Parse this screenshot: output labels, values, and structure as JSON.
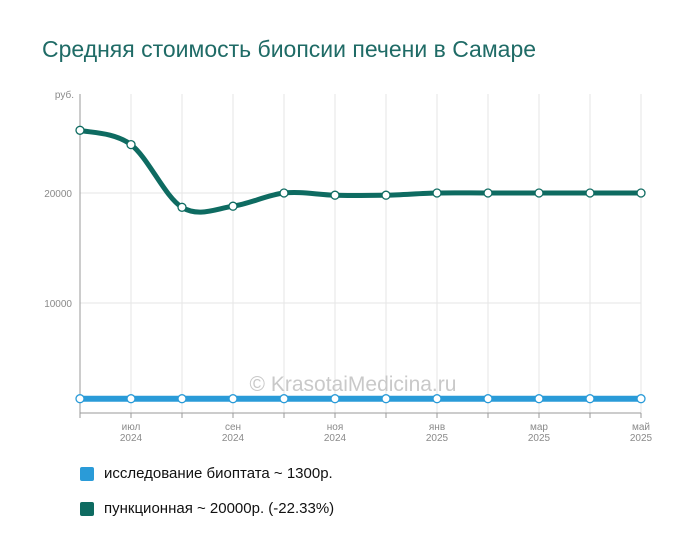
{
  "title": "Средняя стоимость биопсии печени в Самаре",
  "watermark": "© KrasotaiMedicina.ru",
  "legend": [
    {
      "label": "исследование биоптата ~ 1300р.",
      "color": "#2a9bd8"
    },
    {
      "label": "пункционная ~ 20000р. (-22.33%)",
      "color": "#0e6b61"
    }
  ],
  "chart_data": {
    "type": "line",
    "ylabel": "руб.",
    "ylim": [
      0,
      29000
    ],
    "yticks": [
      10000,
      20000
    ],
    "x": [
      "2024-06",
      "2024-07",
      "2024-08",
      "2024-09",
      "2024-10",
      "2024-11",
      "2024-12",
      "2025-01",
      "2025-02",
      "2025-03",
      "2025-04",
      "2025-05"
    ],
    "xtick_labels": [
      {
        "index": 1,
        "month": "июл",
        "year": "2024"
      },
      {
        "index": 3,
        "month": "сен",
        "year": "2024"
      },
      {
        "index": 5,
        "month": "ноя",
        "year": "2024"
      },
      {
        "index": 7,
        "month": "янв",
        "year": "2025"
      },
      {
        "index": 9,
        "month": "мар",
        "year": "2025"
      },
      {
        "index": 11,
        "month": "май",
        "year": "2025"
      }
    ],
    "series": [
      {
        "name": "исследование биоптата",
        "color": "#2a9bd8",
        "values": [
          1300,
          1300,
          1300,
          1300,
          1300,
          1300,
          1300,
          1300,
          1300,
          1300,
          1300,
          1300
        ]
      },
      {
        "name": "пункционная",
        "color": "#0e6b61",
        "values": [
          25700,
          24400,
          18700,
          18800,
          20000,
          19800,
          19800,
          20000,
          20000,
          20000,
          20000,
          20000
        ]
      }
    ],
    "grid": true,
    "legend_position": "bottom-left"
  }
}
